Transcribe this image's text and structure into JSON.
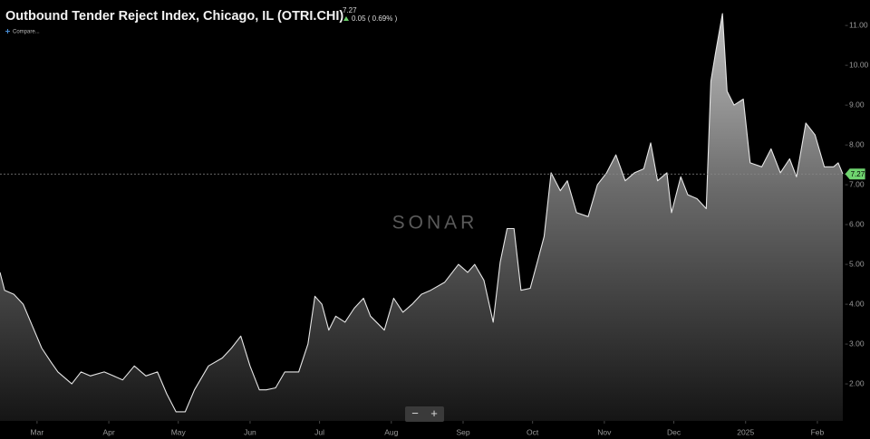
{
  "header": {
    "title": "Outbound Tender Reject Index, Chicago, IL (OTRI.CHI)",
    "last": "7.27",
    "change": "0.05 ( 0.69% )",
    "compare": "Compare..."
  },
  "watermark": "SONAR",
  "zoom": [
    "−",
    "+"
  ],
  "chart_data": {
    "type": "area",
    "x": [
      0,
      2,
      6,
      10,
      14,
      18,
      22,
      25,
      31,
      35,
      39,
      45,
      49,
      53,
      58,
      63,
      68,
      72,
      76,
      80,
      84,
      90,
      96,
      100,
      104,
      108,
      112,
      115,
      119,
      123,
      129,
      133,
      136,
      139,
      142,
      145,
      149,
      153,
      157,
      160,
      166,
      170,
      174,
      178,
      182,
      186,
      192,
      198,
      202,
      205,
      209,
      213,
      216,
      219,
      222,
      225,
      229,
      232,
      235,
      238,
      242,
      245,
      249,
      254,
      258,
      262,
      266,
      270,
      274,
      278,
      281,
      284,
      288,
      290,
      294,
      297,
      301,
      305,
      307,
      309,
      312,
      314,
      317,
      321,
      324,
      329,
      333,
      337,
      341,
      344,
      348,
      352,
      356,
      360,
      362,
      364
    ],
    "series": [
      {
        "name": "OTRI.CHI",
        "color": "#e6e6e6",
        "values": [
          4.8,
          4.35,
          4.25,
          4.0,
          3.45,
          2.9,
          2.55,
          2.3,
          2.0,
          2.3,
          2.2,
          2.3,
          2.2,
          2.1,
          2.45,
          2.2,
          2.3,
          1.75,
          1.3,
          1.3,
          1.85,
          2.45,
          2.65,
          2.9,
          3.2,
          2.45,
          1.85,
          1.85,
          1.9,
          2.3,
          2.3,
          3.0,
          4.2,
          4.0,
          3.35,
          3.7,
          3.55,
          3.9,
          4.15,
          3.7,
          3.35,
          4.15,
          3.8,
          4.0,
          4.25,
          4.35,
          4.55,
          5.0,
          4.8,
          5.0,
          4.6,
          3.55,
          5.05,
          5.9,
          5.9,
          4.35,
          4.4,
          5.05,
          5.7,
          7.3,
          6.85,
          7.1,
          6.3,
          6.2,
          7.0,
          7.3,
          7.75,
          7.1,
          7.3,
          7.4,
          8.05,
          7.1,
          7.3,
          6.3,
          7.2,
          6.75,
          6.65,
          6.4,
          9.6,
          10.3,
          11.3,
          9.35,
          9.0,
          9.15,
          7.55,
          7.45,
          7.9,
          7.3,
          7.65,
          7.2,
          8.55,
          8.25,
          7.45,
          7.45,
          7.55,
          7.27
        ]
      }
    ],
    "last_value": 7.27,
    "last_color": "#6fd46f",
    "xlim": [
      0,
      365
    ],
    "xticks": [
      {
        "value": 16,
        "label": "Mar"
      },
      {
        "value": 47,
        "label": "Apr"
      },
      {
        "value": 77,
        "label": "May"
      },
      {
        "value": 108,
        "label": "Jun"
      },
      {
        "value": 138,
        "label": "Jul"
      },
      {
        "value": 169,
        "label": "Aug"
      },
      {
        "value": 200,
        "label": "Sep"
      },
      {
        "value": 230,
        "label": "Oct"
      },
      {
        "value": 261,
        "label": "Nov"
      },
      {
        "value": 291,
        "label": "Dec"
      },
      {
        "value": 322,
        "label": "2025"
      },
      {
        "value": 353,
        "label": "Feb"
      }
    ],
    "ylim": [
      1.07,
      11.64
    ],
    "yticks": [
      {
        "value": 2,
        "label": "2.00"
      },
      {
        "value": 3,
        "label": "3.00"
      },
      {
        "value": 4,
        "label": "4.00"
      },
      {
        "value": 5,
        "label": "5.00"
      },
      {
        "value": 6,
        "label": "6.00"
      },
      {
        "value": 7,
        "label": "7.00"
      },
      {
        "value": 8,
        "label": "8.00"
      },
      {
        "value": 9,
        "label": "9.00"
      },
      {
        "value": 10,
        "label": "10.00"
      },
      {
        "value": 11,
        "label": "11.00"
      }
    ],
    "grid": false
  }
}
